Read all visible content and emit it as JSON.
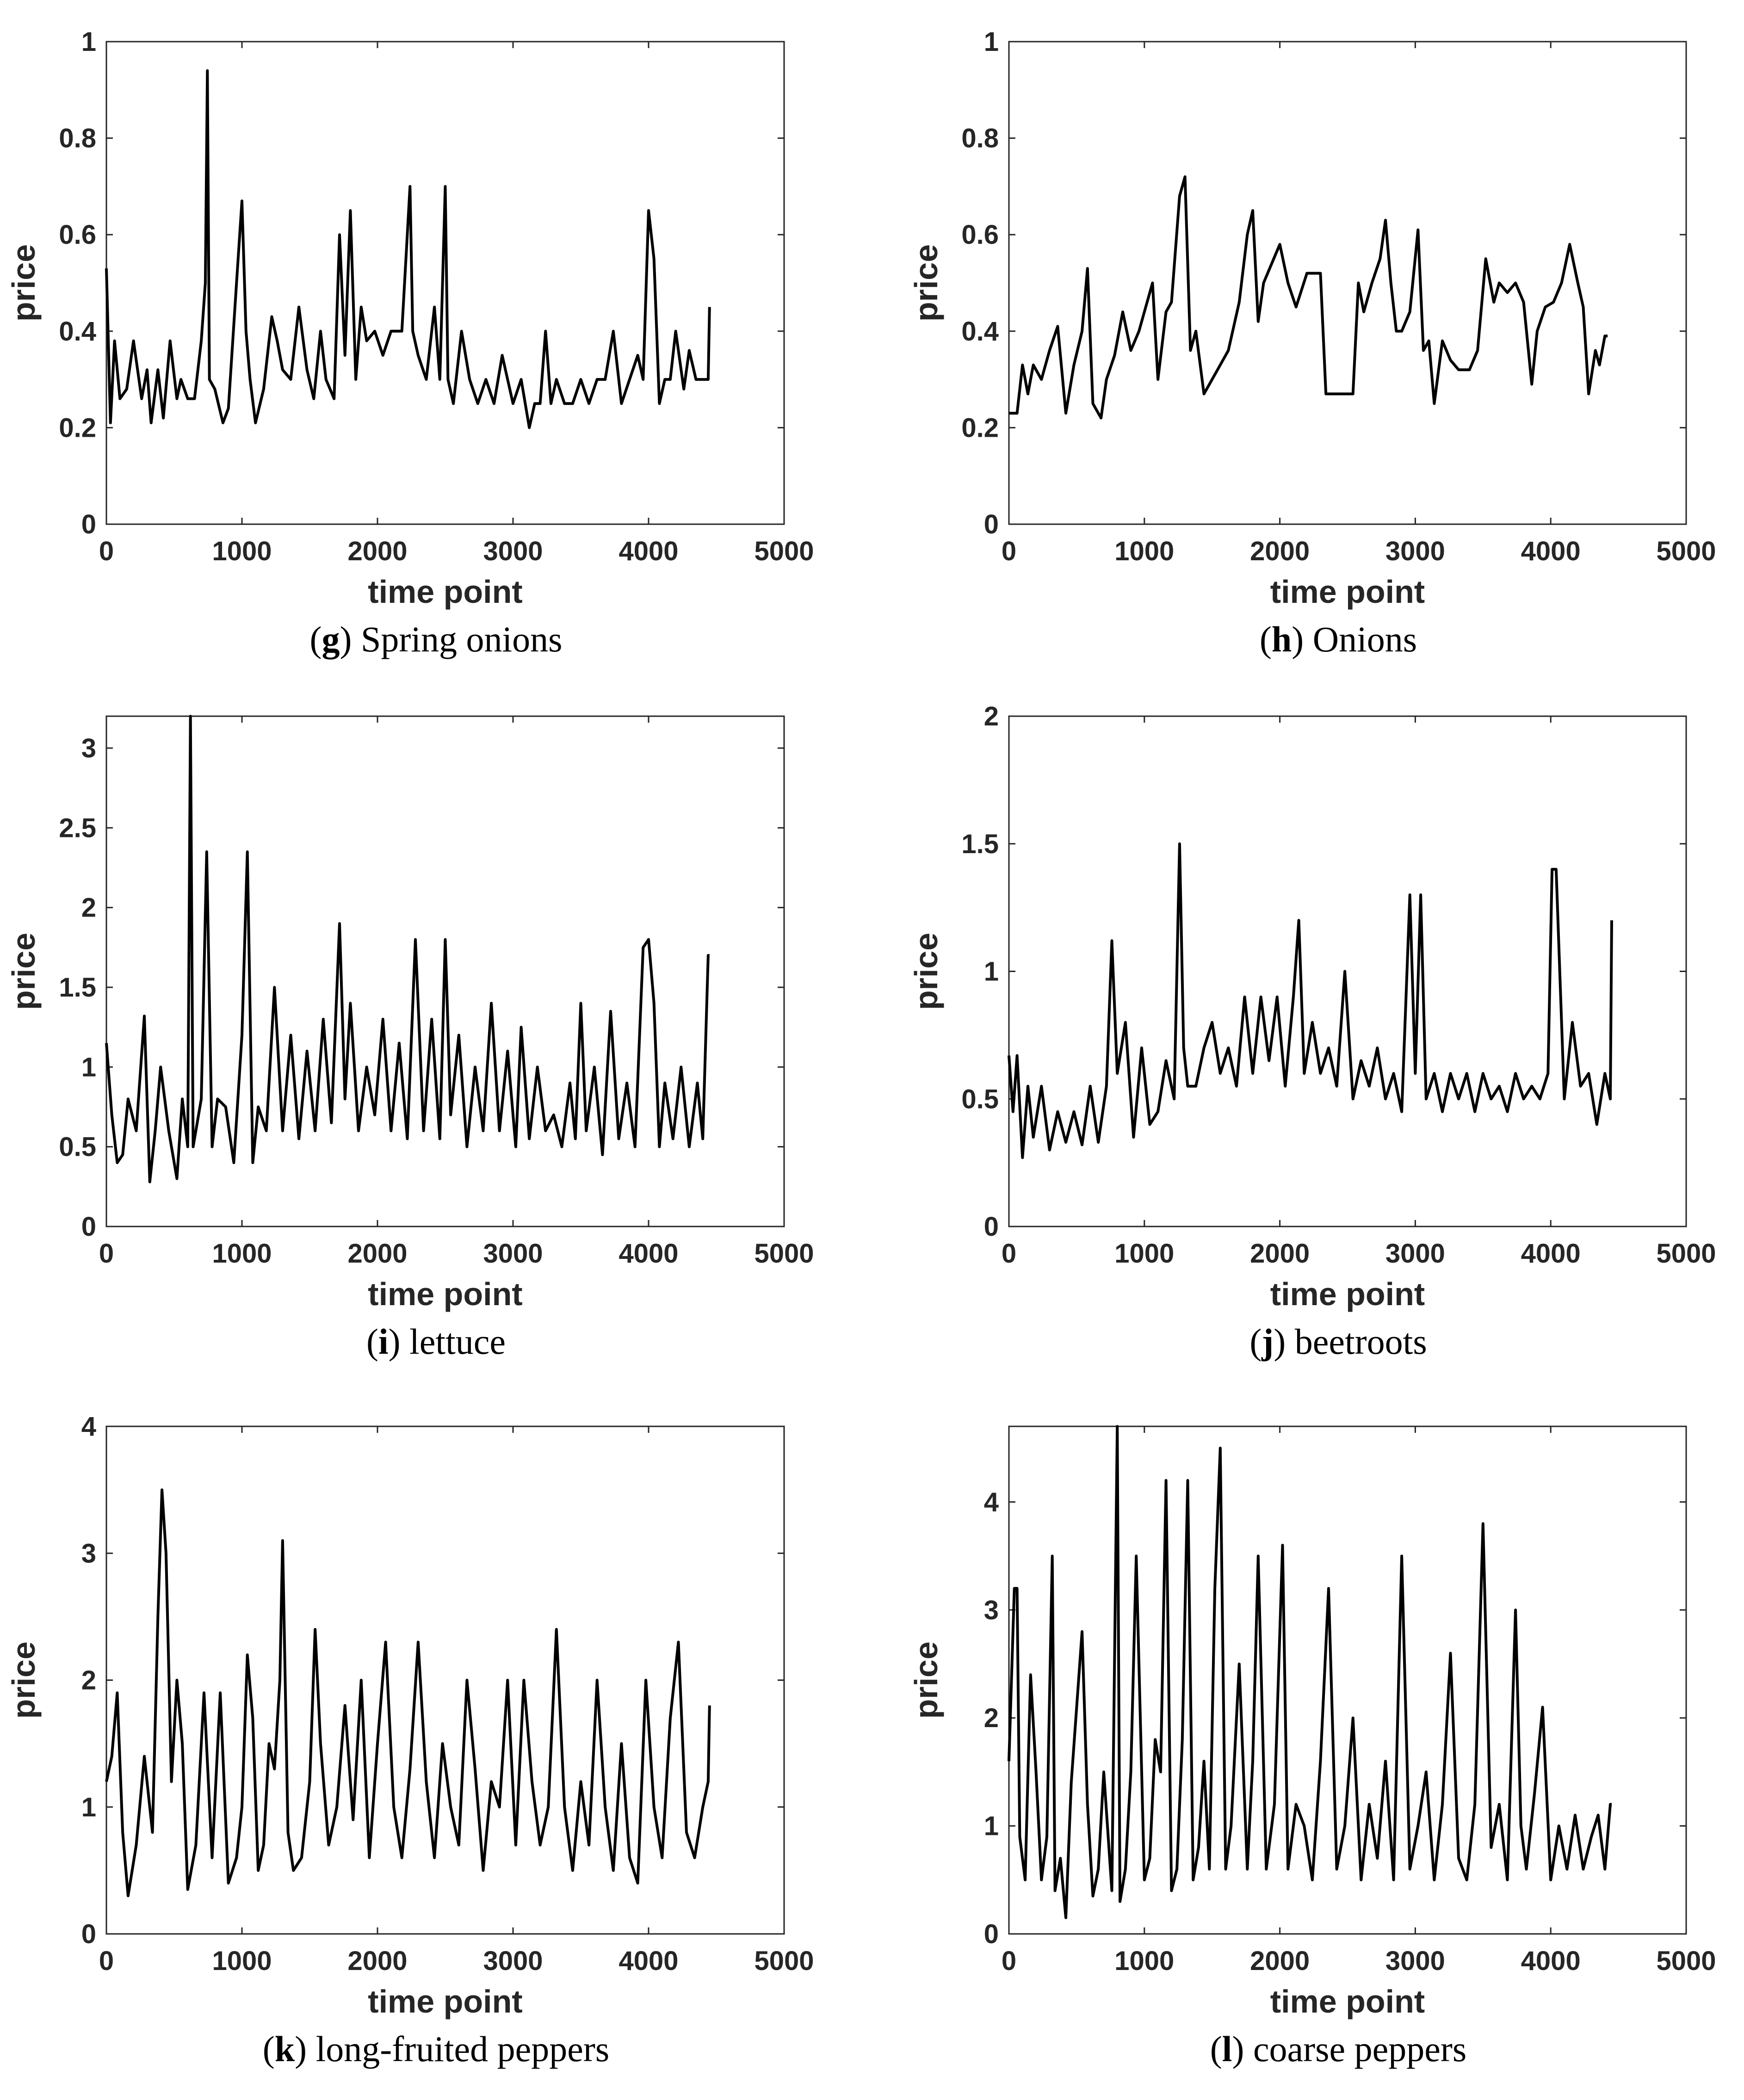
{
  "figure": "price series panels g-l",
  "chart_data": [
    {
      "type": "line",
      "panel": "g",
      "caption_letter": "g",
      "caption_text": "Spring onions",
      "xlabel": "time point",
      "ylabel": "price",
      "xlim": [
        0,
        5000
      ],
      "ylim": [
        0,
        1
      ],
      "xticks": [
        0,
        1000,
        2000,
        3000,
        4000,
        5000
      ],
      "yticks": [
        0,
        0.2,
        0.4,
        0.6,
        0.8,
        1
      ],
      "ytick_labels": [
        "0",
        "0.2",
        "0.4",
        "0.6",
        "0.8",
        "1"
      ],
      "x": [
        0,
        30,
        60,
        100,
        150,
        200,
        260,
        300,
        330,
        380,
        420,
        470,
        520,
        550,
        600,
        650,
        700,
        730,
        745,
        760,
        800,
        860,
        900,
        960,
        1000,
        1030,
        1060,
        1100,
        1160,
        1220,
        1260,
        1300,
        1360,
        1420,
        1480,
        1530,
        1580,
        1620,
        1680,
        1720,
        1760,
        1800,
        1840,
        1880,
        1920,
        1980,
        2040,
        2100,
        2180,
        2240,
        2260,
        2300,
        2360,
        2420,
        2460,
        2500,
        2520,
        2560,
        2620,
        2680,
        2740,
        2800,
        2860,
        2920,
        3000,
        3060,
        3120,
        3160,
        3200,
        3240,
        3280,
        3320,
        3380,
        3440,
        3500,
        3560,
        3620,
        3680,
        3740,
        3800,
        3860,
        3920,
        3960,
        4000,
        4040,
        4080,
        4120,
        4160,
        4200,
        4260,
        4300,
        4350,
        4400,
        4440,
        4450
      ],
      "values": [
        0.53,
        0.21,
        0.38,
        0.26,
        0.28,
        0.38,
        0.26,
        0.32,
        0.21,
        0.32,
        0.22,
        0.38,
        0.26,
        0.3,
        0.26,
        0.26,
        0.38,
        0.5,
        0.94,
        0.3,
        0.28,
        0.21,
        0.24,
        0.5,
        0.67,
        0.4,
        0.3,
        0.21,
        0.28,
        0.43,
        0.38,
        0.32,
        0.3,
        0.45,
        0.32,
        0.26,
        0.4,
        0.3,
        0.26,
        0.6,
        0.35,
        0.65,
        0.3,
        0.45,
        0.38,
        0.4,
        0.35,
        0.4,
        0.4,
        0.7,
        0.4,
        0.35,
        0.3,
        0.45,
        0.3,
        0.7,
        0.3,
        0.25,
        0.4,
        0.3,
        0.25,
        0.3,
        0.25,
        0.35,
        0.25,
        0.3,
        0.2,
        0.25,
        0.25,
        0.4,
        0.25,
        0.3,
        0.25,
        0.25,
        0.3,
        0.25,
        0.3,
        0.3,
        0.4,
        0.25,
        0.3,
        0.35,
        0.3,
        0.65,
        0.55,
        0.25,
        0.3,
        0.3,
        0.4,
        0.28,
        0.36,
        0.3,
        0.3,
        0.3,
        0.45
      ]
    },
    {
      "type": "line",
      "panel": "h",
      "caption_letter": "h",
      "caption_text": "Onions",
      "xlabel": "time point",
      "ylabel": "price",
      "xlim": [
        0,
        5000
      ],
      "ylim": [
        0,
        1
      ],
      "xticks": [
        0,
        1000,
        2000,
        3000,
        4000,
        5000
      ],
      "yticks": [
        0,
        0.2,
        0.4,
        0.6,
        0.8,
        1
      ],
      "ytick_labels": [
        "0",
        "0.2",
        "0.4",
        "0.6",
        "0.8",
        "1"
      ],
      "x": [
        0,
        60,
        100,
        140,
        180,
        240,
        300,
        360,
        420,
        480,
        540,
        580,
        620,
        680,
        720,
        780,
        840,
        900,
        960,
        1000,
        1060,
        1100,
        1160,
        1200,
        1260,
        1300,
        1340,
        1380,
        1440,
        1500,
        1560,
        1620,
        1700,
        1760,
        1800,
        1840,
        1880,
        1940,
        2000,
        2060,
        2120,
        2200,
        2260,
        2300,
        2340,
        2380,
        2440,
        2540,
        2580,
        2620,
        2680,
        2740,
        2780,
        2820,
        2860,
        2900,
        2960,
        3020,
        3060,
        3100,
        3140,
        3200,
        3260,
        3320,
        3400,
        3460,
        3520,
        3580,
        3620,
        3680,
        3740,
        3800,
        3860,
        3900,
        3960,
        4020,
        4080,
        4140,
        4200,
        4240,
        4280,
        4330,
        4360,
        4400,
        4420
      ],
      "values": [
        0.23,
        0.23,
        0.33,
        0.27,
        0.33,
        0.3,
        0.36,
        0.41,
        0.23,
        0.33,
        0.4,
        0.53,
        0.25,
        0.22,
        0.3,
        0.35,
        0.44,
        0.36,
        0.4,
        0.44,
        0.5,
        0.3,
        0.44,
        0.46,
        0.68,
        0.72,
        0.36,
        0.4,
        0.27,
        0.3,
        0.33,
        0.36,
        0.46,
        0.6,
        0.65,
        0.42,
        0.5,
        0.54,
        0.58,
        0.5,
        0.45,
        0.52,
        0.52,
        0.52,
        0.27,
        0.27,
        0.27,
        0.27,
        0.5,
        0.44,
        0.5,
        0.55,
        0.63,
        0.5,
        0.4,
        0.4,
        0.44,
        0.61,
        0.36,
        0.38,
        0.25,
        0.38,
        0.34,
        0.32,
        0.32,
        0.36,
        0.55,
        0.46,
        0.5,
        0.48,
        0.5,
        0.46,
        0.29,
        0.4,
        0.45,
        0.46,
        0.5,
        0.58,
        0.5,
        0.45,
        0.27,
        0.36,
        0.33,
        0.39,
        0.39
      ]
    },
    {
      "type": "line",
      "panel": "i",
      "caption_letter": "i",
      "caption_text": "lettuce",
      "xlabel": "time point",
      "ylabel": "price",
      "xlim": [
        0,
        5000
      ],
      "ylim": [
        0,
        3.2
      ],
      "xticks": [
        0,
        1000,
        2000,
        3000,
        4000,
        5000
      ],
      "yticks": [
        0,
        0.5,
        1,
        1.5,
        2,
        2.5,
        3
      ],
      "ytick_labels": [
        "0",
        "0.5",
        "1",
        "1.5",
        "2",
        "2.5",
        "3"
      ],
      "x": [
        0,
        40,
        80,
        120,
        160,
        220,
        280,
        320,
        360,
        400,
        460,
        520,
        560,
        600,
        620,
        640,
        700,
        740,
        780,
        820,
        880,
        940,
        1000,
        1040,
        1080,
        1120,
        1180,
        1240,
        1300,
        1360,
        1420,
        1480,
        1540,
        1600,
        1660,
        1720,
        1760,
        1800,
        1860,
        1920,
        1980,
        2040,
        2100,
        2160,
        2220,
        2280,
        2340,
        2400,
        2460,
        2500,
        2540,
        2600,
        2660,
        2720,
        2780,
        2840,
        2900,
        2960,
        3020,
        3060,
        3120,
        3180,
        3240,
        3300,
        3360,
        3420,
        3460,
        3500,
        3540,
        3600,
        3660,
        3720,
        3780,
        3840,
        3900,
        3960,
        4000,
        4040,
        4080,
        4120,
        4180,
        4240,
        4300,
        4360,
        4400,
        4440,
        4450
      ],
      "values": [
        1.15,
        0.7,
        0.4,
        0.45,
        0.8,
        0.6,
        1.32,
        0.28,
        0.6,
        1.0,
        0.6,
        0.3,
        0.8,
        0.5,
        3.2,
        0.5,
        0.8,
        2.35,
        0.5,
        0.8,
        0.75,
        0.4,
        1.2,
        2.35,
        0.4,
        0.75,
        0.6,
        1.5,
        0.6,
        1.2,
        0.55,
        1.1,
        0.6,
        1.3,
        0.65,
        1.9,
        0.8,
        1.4,
        0.6,
        1.0,
        0.7,
        1.3,
        0.6,
        1.15,
        0.55,
        1.8,
        0.6,
        1.3,
        0.55,
        1.8,
        0.7,
        1.2,
        0.5,
        1.0,
        0.6,
        1.4,
        0.6,
        1.1,
        0.5,
        1.25,
        0.55,
        1.0,
        0.6,
        0.7,
        0.5,
        0.9,
        0.55,
        1.4,
        0.6,
        1.0,
        0.45,
        1.35,
        0.55,
        0.9,
        0.5,
        1.75,
        1.8,
        1.4,
        0.5,
        0.9,
        0.55,
        1.0,
        0.5,
        0.9,
        0.55,
        1.7,
        1.7
      ]
    },
    {
      "type": "line",
      "panel": "j",
      "caption_letter": "j",
      "caption_text": "beetroots",
      "xlabel": "time point",
      "ylabel": "price",
      "xlim": [
        0,
        5000
      ],
      "ylim": [
        0,
        2
      ],
      "xticks": [
        0,
        1000,
        2000,
        3000,
        4000,
        5000
      ],
      "yticks": [
        0,
        0.5,
        1,
        1.5,
        2
      ],
      "ytick_labels": [
        "0",
        "0.5",
        "1",
        "1.5",
        "2"
      ],
      "x": [
        0,
        30,
        60,
        100,
        140,
        180,
        240,
        300,
        360,
        420,
        480,
        540,
        600,
        660,
        720,
        760,
        800,
        860,
        920,
        980,
        1040,
        1100,
        1160,
        1220,
        1260,
        1290,
        1320,
        1380,
        1440,
        1500,
        1560,
        1620,
        1680,
        1740,
        1800,
        1860,
        1920,
        1980,
        2040,
        2100,
        2140,
        2180,
        2240,
        2300,
        2360,
        2420,
        2480,
        2540,
        2600,
        2660,
        2720,
        2780,
        2840,
        2900,
        2960,
        3000,
        3040,
        3080,
        3140,
        3200,
        3260,
        3320,
        3380,
        3440,
        3500,
        3560,
        3620,
        3680,
        3740,
        3800,
        3860,
        3920,
        3980,
        4010,
        4040,
        4100,
        4160,
        4220,
        4280,
        4340,
        4400,
        4440,
        4450
      ],
      "values": [
        0.67,
        0.45,
        0.67,
        0.27,
        0.55,
        0.35,
        0.55,
        0.3,
        0.45,
        0.33,
        0.45,
        0.32,
        0.55,
        0.33,
        0.55,
        1.12,
        0.6,
        0.8,
        0.35,
        0.7,
        0.4,
        0.45,
        0.65,
        0.5,
        1.5,
        0.7,
        0.55,
        0.55,
        0.7,
        0.8,
        0.6,
        0.7,
        0.55,
        0.9,
        0.6,
        0.9,
        0.65,
        0.9,
        0.55,
        0.9,
        1.2,
        0.6,
        0.8,
        0.6,
        0.7,
        0.55,
        1.0,
        0.5,
        0.65,
        0.55,
        0.7,
        0.5,
        0.6,
        0.45,
        1.3,
        0.6,
        1.3,
        0.5,
        0.6,
        0.45,
        0.6,
        0.5,
        0.6,
        0.45,
        0.6,
        0.5,
        0.55,
        0.45,
        0.6,
        0.5,
        0.55,
        0.5,
        0.6,
        1.4,
        1.4,
        0.5,
        0.8,
        0.55,
        0.6,
        0.4,
        0.6,
        0.5,
        1.2
      ]
    },
    {
      "type": "line",
      "panel": "k",
      "caption_letter": "k",
      "caption_text": "long-fruited peppers",
      "xlabel": "time point",
      "ylabel": "price",
      "xlim": [
        0,
        5000
      ],
      "ylim": [
        0,
        4
      ],
      "xticks": [
        0,
        1000,
        2000,
        3000,
        4000,
        5000
      ],
      "yticks": [
        0,
        1,
        2,
        3,
        4
      ],
      "ytick_labels": [
        "0",
        "1",
        "2",
        "3",
        "4"
      ],
      "x": [
        0,
        40,
        80,
        120,
        160,
        220,
        280,
        340,
        380,
        410,
        440,
        480,
        520,
        560,
        600,
        660,
        720,
        780,
        840,
        900,
        960,
        1000,
        1040,
        1080,
        1120,
        1160,
        1200,
        1240,
        1280,
        1300,
        1340,
        1380,
        1440,
        1500,
        1540,
        1580,
        1640,
        1700,
        1760,
        1820,
        1880,
        1940,
        2000,
        2060,
        2120,
        2180,
        2240,
        2300,
        2360,
        2420,
        2480,
        2540,
        2600,
        2660,
        2720,
        2780,
        2840,
        2900,
        2960,
        3020,
        3080,
        3140,
        3200,
        3260,
        3320,
        3380,
        3440,
        3500,
        3560,
        3620,
        3680,
        3740,
        3800,
        3860,
        3920,
        3980,
        4040,
        4100,
        4160,
        4220,
        4280,
        4340,
        4400,
        4440,
        4450
      ],
      "values": [
        1.2,
        1.4,
        1.9,
        0.8,
        0.3,
        0.7,
        1.4,
        0.8,
        2.5,
        3.5,
        3.0,
        1.2,
        2.0,
        1.5,
        0.35,
        0.7,
        1.9,
        0.6,
        1.9,
        0.4,
        0.6,
        1.0,
        2.2,
        1.7,
        0.5,
        0.7,
        1.5,
        1.3,
        2.0,
        3.1,
        0.8,
        0.5,
        0.6,
        1.2,
        2.4,
        1.5,
        0.7,
        1.0,
        1.8,
        0.9,
        2.0,
        0.6,
        1.5,
        2.3,
        1.0,
        0.6,
        1.3,
        2.3,
        1.2,
        0.6,
        1.5,
        1.0,
        0.7,
        2.0,
        1.3,
        0.5,
        1.2,
        1.0,
        2.0,
        0.7,
        2.0,
        1.2,
        0.7,
        1.0,
        2.4,
        1.0,
        0.5,
        1.2,
        0.7,
        2.0,
        1.0,
        0.5,
        1.5,
        0.6,
        0.4,
        2.0,
        1.0,
        0.6,
        1.7,
        2.3,
        0.8,
        0.6,
        1.0,
        1.2,
        1.8
      ]
    },
    {
      "type": "line",
      "panel": "l",
      "caption_letter": "l",
      "caption_text": "coarse peppers",
      "xlabel": "time point",
      "ylabel": "price",
      "xlim": [
        0,
        5000
      ],
      "ylim": [
        0,
        4.7
      ],
      "xticks": [
        0,
        1000,
        2000,
        3000,
        4000,
        5000
      ],
      "yticks": [
        0,
        1,
        2,
        3,
        4
      ],
      "ytick_labels": [
        "0",
        "1",
        "2",
        "3",
        "4"
      ],
      "x": [
        0,
        40,
        60,
        80,
        120,
        160,
        200,
        240,
        280,
        320,
        340,
        380,
        420,
        460,
        500,
        540,
        580,
        620,
        660,
        700,
        760,
        800,
        820,
        860,
        900,
        940,
        1000,
        1040,
        1080,
        1120,
        1160,
        1200,
        1240,
        1280,
        1320,
        1360,
        1400,
        1440,
        1480,
        1520,
        1560,
        1600,
        1640,
        1700,
        1760,
        1800,
        1840,
        1900,
        1960,
        2020,
        2060,
        2120,
        2180,
        2240,
        2300,
        2360,
        2420,
        2480,
        2540,
        2600,
        2660,
        2720,
        2780,
        2840,
        2900,
        2960,
        3020,
        3080,
        3140,
        3200,
        3260,
        3320,
        3380,
        3440,
        3500,
        3560,
        3620,
        3680,
        3740,
        3780,
        3820,
        3880,
        3940,
        4000,
        4060,
        4120,
        4180,
        4240,
        4300,
        4350,
        4400,
        4440,
        4450
      ],
      "values": [
        1.6,
        3.2,
        3.2,
        0.9,
        0.5,
        2.4,
        1.5,
        0.5,
        0.9,
        3.5,
        0.4,
        0.7,
        0.15,
        1.4,
        2.1,
        2.8,
        1.2,
        0.35,
        0.6,
        1.5,
        0.4,
        4.7,
        0.3,
        0.6,
        1.5,
        3.5,
        0.5,
        0.7,
        1.8,
        1.5,
        4.2,
        0.4,
        0.6,
        1.8,
        4.2,
        0.5,
        0.8,
        1.6,
        0.6,
        3.2,
        4.5,
        0.6,
        1.0,
        2.5,
        0.6,
        1.6,
        3.5,
        0.6,
        1.2,
        3.6,
        0.6,
        1.2,
        1.0,
        0.5,
        1.6,
        3.2,
        0.6,
        1.0,
        2.0,
        0.5,
        1.2,
        0.7,
        1.6,
        0.5,
        3.5,
        0.6,
        1.0,
        1.5,
        0.5,
        1.2,
        2.6,
        0.7,
        0.5,
        1.2,
        3.8,
        0.8,
        1.2,
        0.5,
        3.0,
        1.0,
        0.6,
        1.3,
        2.1,
        0.5,
        1.0,
        0.6,
        1.1,
        0.6,
        0.9,
        1.1,
        0.6,
        1.2,
        1.2
      ]
    }
  ]
}
